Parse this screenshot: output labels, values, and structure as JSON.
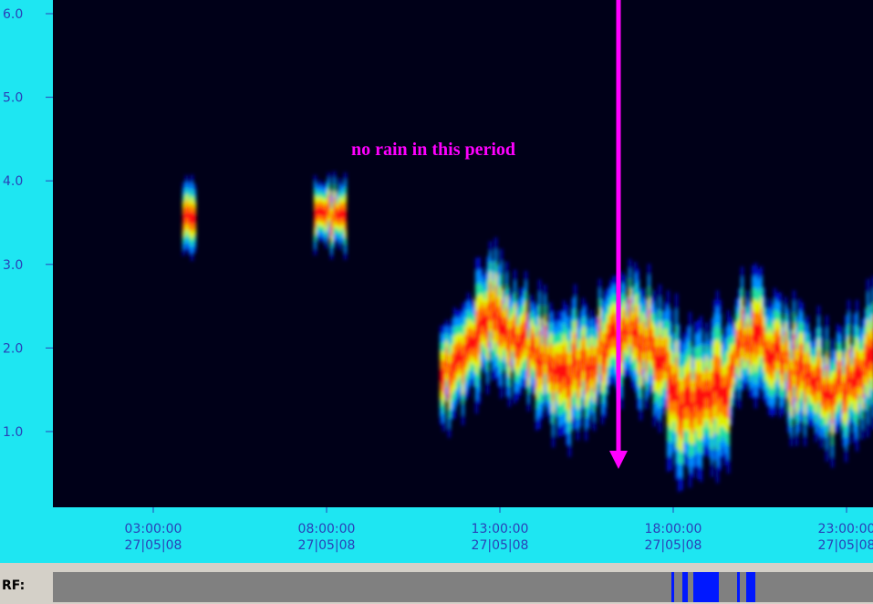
{
  "y_axis": {
    "ticks": [
      {
        "value": 6,
        "label": "6.0"
      },
      {
        "value": 5,
        "label": "5.0"
      },
      {
        "value": 4,
        "label": "4.0"
      },
      {
        "value": 3,
        "label": "3.0"
      },
      {
        "value": 2,
        "label": "2.0"
      },
      {
        "value": 1,
        "label": "1.0"
      }
    ],
    "ylim": [
      0.1,
      6
    ]
  },
  "x_axis": {
    "labels": [
      {
        "time": "03:00:00",
        "date": "27|05|08"
      },
      {
        "time": "08:00:00",
        "date": "27|05|08"
      },
      {
        "time": "13:00:00",
        "date": "27|05|08"
      },
      {
        "time": "18:00:00",
        "date": "27|05|08"
      },
      {
        "time": "23:00:00",
        "date": "27|05|08"
      }
    ]
  },
  "annotation": "no rain in this period",
  "rf_label": "RF:"
}
